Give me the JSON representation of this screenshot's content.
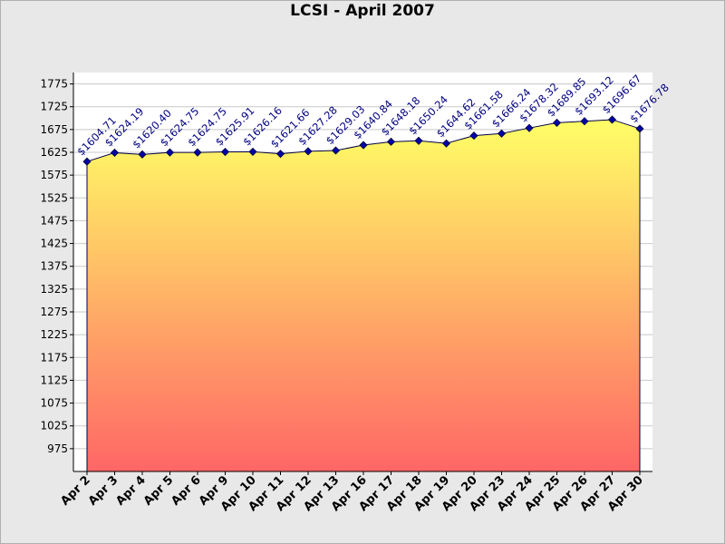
{
  "chart_data": {
    "type": "area",
    "title": "LCSI - April 2007",
    "categories": [
      "Apr 2",
      "Apr 3",
      "Apr 4",
      "Apr 5",
      "Apr 6",
      "Apr 9",
      "Apr 10",
      "Apr 11",
      "Apr 12",
      "Apr 13",
      "Apr 16",
      "Apr 17",
      "Apr 18",
      "Apr 19",
      "Apr 20",
      "Apr 23",
      "Apr 24",
      "Apr 25",
      "Apr 26",
      "Apr 27",
      "Apr 30"
    ],
    "values": [
      1604.71,
      1624.19,
      1620.4,
      1624.75,
      1624.75,
      1625.91,
      1626.16,
      1621.66,
      1627.28,
      1629.03,
      1640.84,
      1648.18,
      1650.24,
      1644.62,
      1661.58,
      1666.24,
      1678.32,
      1689.85,
      1693.12,
      1696.67,
      1676.78
    ],
    "data_labels": [
      "$1604.71",
      "$1624.19",
      "$1620.40",
      "$1624.75",
      "$1624.75",
      "$1625.91",
      "$1626.16",
      "$1621.66",
      "$1627.28",
      "$1629.03",
      "$1640.84",
      "$1648.18",
      "$1650.24",
      "$1644.62",
      "$1661.58",
      "$1666.24",
      "$1678.32",
      "$1689.85",
      "$1693.12",
      "$1696.67",
      "$1676.78"
    ],
    "yticks": [
      975,
      1025,
      1075,
      1125,
      1175,
      1225,
      1275,
      1325,
      1375,
      1425,
      1475,
      1525,
      1575,
      1625,
      1675,
      1725,
      1775
    ],
    "ylim": [
      925,
      1800
    ],
    "grid": true,
    "colors": {
      "fill_top": "#ffff66",
      "fill_bottom": "#ff6666",
      "line": "#000044",
      "marker": "#0000aa",
      "label": "#000080",
      "grid": "#c8c8c8"
    }
  }
}
